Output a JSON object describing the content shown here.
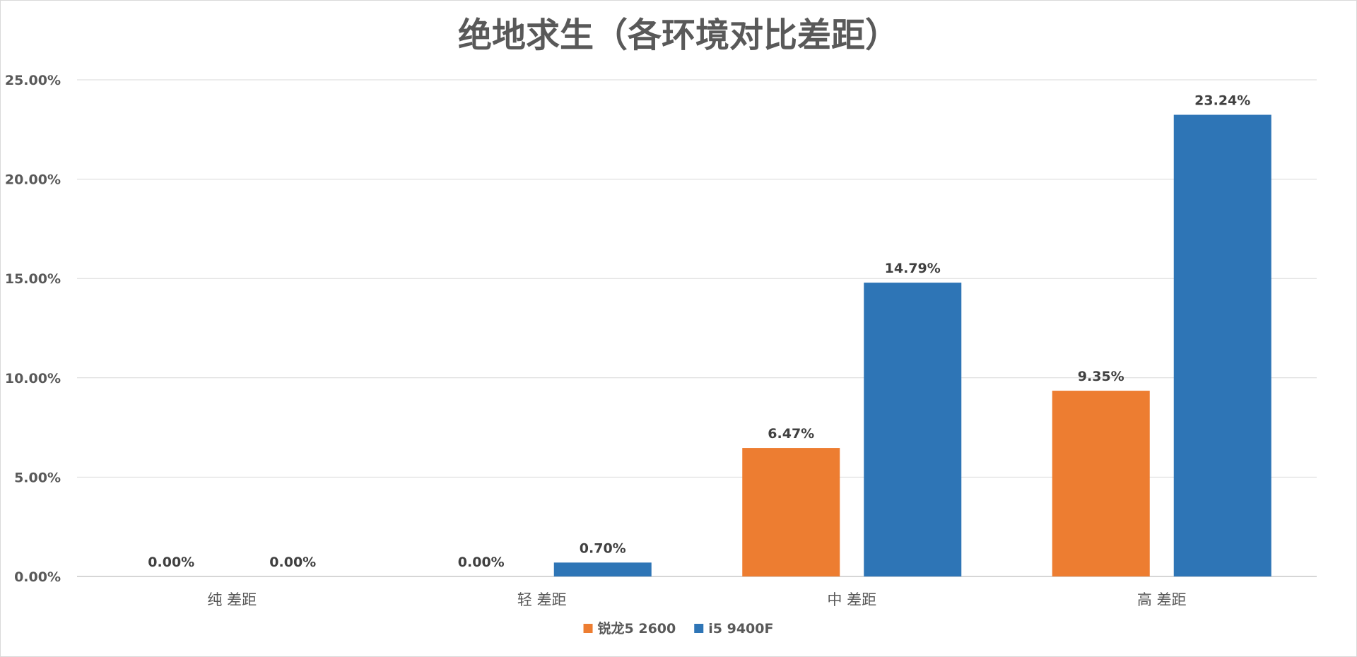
{
  "chart_data": {
    "type": "bar",
    "title": "绝地求生（各环境对比差距）",
    "categories": [
      "纯 差距",
      "轻 差距",
      "中 差距",
      "高 差距"
    ],
    "series": [
      {
        "name": "锐龙5 2600",
        "color": "#ED7D31",
        "values": [
          0.0,
          0.0,
          6.47,
          9.35
        ],
        "labels": [
          "0.00%",
          "0.00%",
          "6.47%",
          "9.35%"
        ]
      },
      {
        "name": "i5 9400F",
        "color": "#2E75B6",
        "values": [
          0.0,
          0.7,
          14.79,
          23.24
        ],
        "labels": [
          "0.00%",
          "0.70%",
          "14.79%",
          "23.24%"
        ]
      }
    ],
    "y_ticks": [
      0,
      5,
      10,
      15,
      20,
      25
    ],
    "y_tick_labels": [
      "0.00%",
      "5.00%",
      "10.00%",
      "15.00%",
      "20.00%",
      "25.00%"
    ],
    "ylim": [
      0,
      25
    ],
    "grid": true,
    "legend_position": "bottom-center"
  }
}
